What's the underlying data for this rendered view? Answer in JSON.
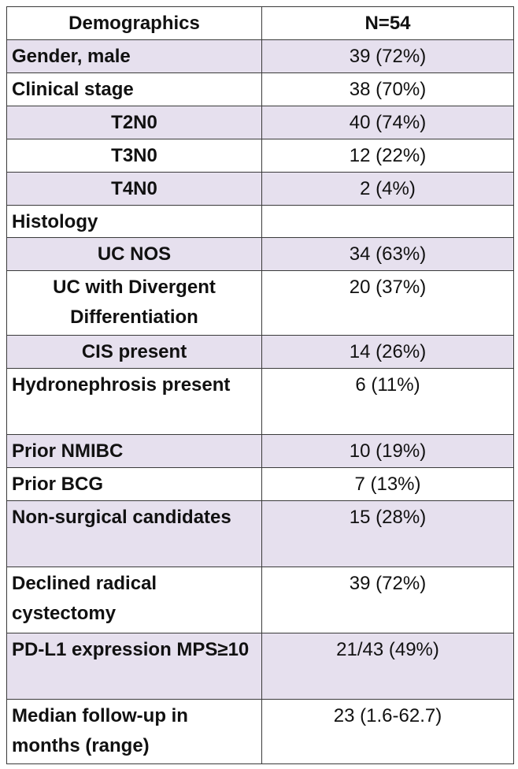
{
  "table": {
    "header": [
      "Demographics",
      "N=54"
    ],
    "rows": [
      [
        "Gender, male",
        "39 (72%)"
      ],
      [
        "Clinical stage",
        "38 (70%)"
      ],
      [
        "T2N0",
        "40 (74%)"
      ],
      [
        "T3N0",
        "12 (22%)"
      ],
      [
        "T4N0",
        "2 (4%)"
      ],
      [
        "Histology",
        null
      ],
      [
        "UC NOS",
        "34 (63%)"
      ],
      [
        "UC with Divergent Differentiation",
        "20 (37%)"
      ],
      [
        "CIS present",
        "14 (26%)"
      ],
      [
        "Hydronephrosis present",
        "6 (11%)"
      ],
      [
        "Prior NMIBC",
        "10 (19%)"
      ],
      [
        "Prior BCG",
        "7 (13%)"
      ],
      [
        "Non-surgical candidates",
        "15 (28%)"
      ],
      [
        "Declined radical cystectomy",
        "39 (72%)"
      ],
      [
        "PD-L1 expression MPS≥10",
        "21/43 (49%)"
      ],
      [
        "Median follow-up in months (range)",
        "23 (1.6-62.7)"
      ]
    ]
  }
}
